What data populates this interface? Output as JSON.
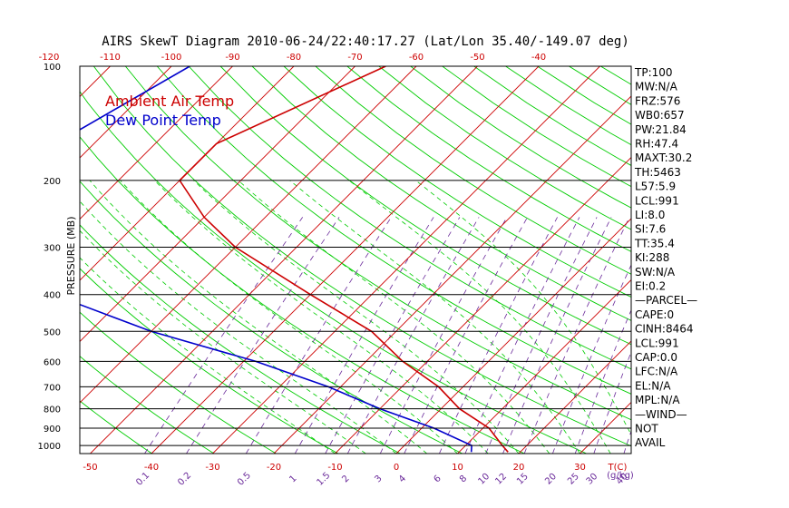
{
  "chart_data": {
    "type": "line",
    "title": "AIRS SkewT Diagram 2010-06-24/22:40:17.27 (Lat/Lon 35.40/-149.07 deg)",
    "ylabel": "PRESSURE (MB)",
    "xlabel": "T(C)",
    "mixing_ratio_unit": "(g/kg)",
    "legend": {
      "ambient": "Ambient Air Temp",
      "dewpoint": "Dew Point Temp",
      "placement": "top-left"
    },
    "colors": {
      "ambient": "#cc0000",
      "dewpoint": "#0000cc",
      "dry_adiabat": "#00cc00",
      "isotherm": "#cc0000",
      "mixing": "#6a2a9a",
      "moist": "#00cc00"
    },
    "grid": true,
    "ylim": [
      1050,
      100
    ],
    "xlim_bottom": [
      -55,
      40
    ],
    "pressure_ticks": [
      100,
      200,
      300,
      400,
      500,
      600,
      700,
      800,
      900,
      1000
    ],
    "bottom_temp_ticks": [
      -50,
      -40,
      -30,
      -20,
      -10,
      0,
      10,
      20,
      30
    ],
    "top_temp_ticks": [
      -120,
      -110,
      -100,
      -90,
      -80,
      -70,
      -60,
      -50,
      -40
    ],
    "mixing_ratio_ticks": [
      "0.1",
      "0.2",
      "0.5",
      "1",
      "1.5",
      "2",
      "3",
      "4",
      "6",
      "8",
      "10",
      "12",
      "15",
      "20",
      "25",
      "30",
      "40"
    ],
    "series": [
      {
        "name": "Ambient Air Temp",
        "points": [
          {
            "p": 100,
            "t": -65
          },
          {
            "p": 160,
            "t": -80
          },
          {
            "p": 200,
            "t": -80
          },
          {
            "p": 250,
            "t": -70
          },
          {
            "p": 300,
            "t": -60
          },
          {
            "p": 400,
            "t": -40
          },
          {
            "p": 500,
            "t": -24
          },
          {
            "p": 600,
            "t": -14
          },
          {
            "p": 700,
            "t": -4
          },
          {
            "p": 800,
            "t": 3
          },
          {
            "p": 900,
            "t": 11
          },
          {
            "p": 1000,
            "t": 16
          },
          {
            "p": 1040,
            "t": 18
          }
        ]
      },
      {
        "name": "Dew Point Temp",
        "points": [
          {
            "p": 100,
            "t": -97
          },
          {
            "p": 150,
            "t": -105
          },
          {
            "p": 200,
            "t": -104
          },
          {
            "p": 250,
            "t": -98
          },
          {
            "p": 300,
            "t": -95
          },
          {
            "p": 400,
            "t": -82
          },
          {
            "p": 500,
            "t": -60
          },
          {
            "p": 600,
            "t": -38
          },
          {
            "p": 700,
            "t": -22
          },
          {
            "p": 800,
            "t": -10
          },
          {
            "p": 900,
            "t": 2
          },
          {
            "p": 1000,
            "t": 11
          },
          {
            "p": 1040,
            "t": 12
          }
        ]
      }
    ]
  },
  "indices": [
    "TP:100",
    "MW:N/A",
    "FRZ:576",
    "WB0:657",
    "PW:21.84",
    "RH:47.4",
    "MAXT:30.2",
    "TH:5463",
    "L57:5.9",
    "LCL:991",
    "LI:8.0",
    "SI:7.6",
    "TT:35.4",
    "KI:288",
    "SW:N/A",
    "EI:0.2",
    "—PARCEL—",
    "CAPE:0",
    "CINH:8464",
    "LCL:991",
    "CAP:0.0",
    "LFC:N/A",
    "EL:N/A",
    "MPL:N/A",
    "—WIND—",
    "NOT",
    "AVAIL"
  ]
}
